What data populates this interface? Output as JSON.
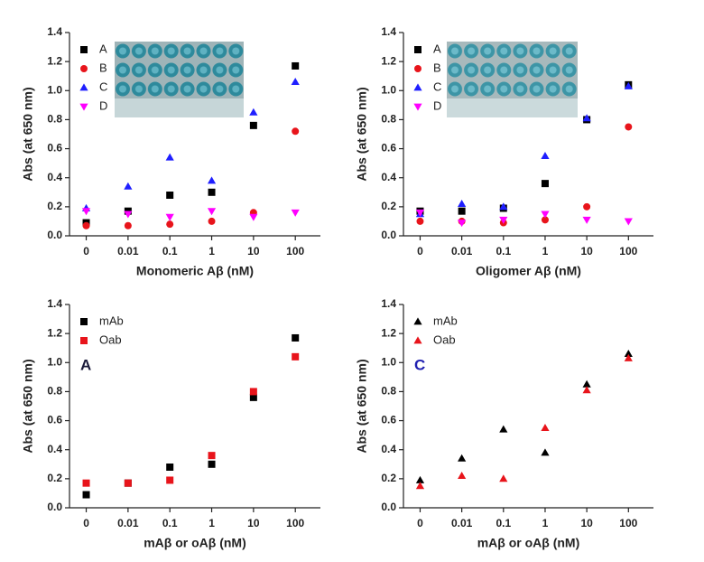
{
  "chart_data": [
    {
      "type": "scatter",
      "xlabel": "Monomeric Aβ (nM)",
      "ylabel": "Abs (at 650 nm)",
      "categories": [
        "0",
        "0.01",
        "0.1",
        "1",
        "10",
        "100"
      ],
      "ylim": [
        0,
        1.4
      ],
      "yticks": [
        {
          "value": 0,
          "label": "0.0"
        },
        0.2,
        0.4,
        0.6,
        0.8,
        {
          "value": 1,
          "label": "1.0"
        },
        1.2,
        1.4
      ],
      "legend": "upper left",
      "series": [
        {
          "name": "A",
          "color": "#000000",
          "marker": "square",
          "values": [
            0.09,
            0.17,
            0.28,
            0.3,
            0.76,
            1.17
          ]
        },
        {
          "name": "B",
          "color": "#e8141b",
          "marker": "circle",
          "values": [
            0.07,
            0.07,
            0.08,
            0.1,
            0.16,
            0.72
          ]
        },
        {
          "name": "C",
          "color": "#1f1fff",
          "marker": "triangle-up",
          "values": [
            0.19,
            0.34,
            0.54,
            0.38,
            0.85,
            1.06
          ]
        },
        {
          "name": "D",
          "color": "#ff00ff",
          "marker": "triangle-down",
          "values": [
            0.17,
            0.15,
            0.13,
            0.17,
            0.13,
            0.16
          ]
        }
      ]
    },
    {
      "type": "scatter",
      "xlabel": "Oligomer Aβ (nM)",
      "ylabel": "Abs (at 650 nm)",
      "categories": [
        "0",
        "0.01",
        "0.1",
        "1",
        "10",
        "100"
      ],
      "ylim": [
        0,
        1.4
      ],
      "yticks": [
        {
          "value": 0,
          "label": "0.0"
        },
        0.2,
        0.4,
        0.6,
        0.8,
        {
          "value": 1,
          "label": "1.0"
        },
        1.2,
        1.4
      ],
      "legend": "upper left",
      "series": [
        {
          "name": "A",
          "color": "#000000",
          "marker": "square",
          "values": [
            0.17,
            0.17,
            0.19,
            0.36,
            0.8,
            1.04
          ]
        },
        {
          "name": "B",
          "color": "#e8141b",
          "marker": "circle",
          "values": [
            0.1,
            0.1,
            0.09,
            0.11,
            0.2,
            0.75
          ]
        },
        {
          "name": "C",
          "color": "#1f1fff",
          "marker": "triangle-up",
          "values": [
            0.15,
            0.22,
            0.2,
            0.55,
            0.81,
            1.03
          ]
        },
        {
          "name": "D",
          "color": "#ff00ff",
          "marker": "triangle-down",
          "values": [
            0.16,
            0.09,
            0.11,
            0.15,
            0.11,
            0.1
          ]
        }
      ]
    },
    {
      "type": "scatter",
      "xlabel": "mAβ or oAβ (nM)",
      "ylabel": "Abs (at 650 nm)",
      "categories": [
        "0",
        "0.01",
        "0.1",
        "1",
        "10",
        "100"
      ],
      "ylim": [
        0,
        1.4
      ],
      "yticks": [
        {
          "value": 0,
          "label": "0.0"
        },
        0.2,
        0.4,
        0.6,
        0.8,
        {
          "value": 1,
          "label": "1.0"
        },
        1.2,
        1.4
      ],
      "legend": "upper left",
      "annotation": {
        "text": "A",
        "color": "#1a1a3a"
      },
      "series": [
        {
          "name": "mAb",
          "color": "#000000",
          "marker": "square",
          "values": [
            0.09,
            0.17,
            0.28,
            0.3,
            0.76,
            1.17
          ]
        },
        {
          "name": "Oab",
          "color": "#e8141b",
          "marker": "square",
          "values": [
            0.17,
            0.17,
            0.19,
            0.36,
            0.8,
            1.04
          ]
        }
      ]
    },
    {
      "type": "scatter",
      "xlabel": "mAβ or oAβ (nM)",
      "ylabel": "Abs (at 650 nm)",
      "categories": [
        "0",
        "0.01",
        "0.1",
        "1",
        "10",
        "100"
      ],
      "ylim": [
        0,
        1.4
      ],
      "yticks": [
        {
          "value": 0,
          "label": "0.0"
        },
        0.2,
        0.4,
        0.6,
        0.8,
        {
          "value": 1,
          "label": "1.0"
        },
        1.2,
        1.4
      ],
      "legend": "upper left",
      "annotation": {
        "text": "C",
        "color": "#1f1fb0"
      },
      "series": [
        {
          "name": "mAb",
          "color": "#000000",
          "marker": "triangle-up",
          "values": [
            0.19,
            0.34,
            0.54,
            0.38,
            0.85,
            1.06
          ]
        },
        {
          "name": "Oab",
          "color": "#e8141b",
          "marker": "triangle-up",
          "values": [
            0.15,
            0.22,
            0.2,
            0.55,
            0.81,
            1.03
          ]
        }
      ]
    }
  ]
}
